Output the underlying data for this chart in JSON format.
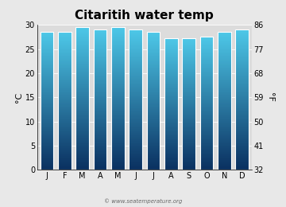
{
  "title": "Citaritih water temp",
  "months": [
    "J",
    "F",
    "M",
    "A",
    "M",
    "J",
    "J",
    "A",
    "S",
    "O",
    "N",
    "D"
  ],
  "values_c": [
    28.5,
    28.5,
    29.5,
    29.0,
    29.5,
    29.0,
    28.5,
    27.2,
    27.2,
    27.5,
    28.5,
    29.0
  ],
  "ylim_c": [
    0,
    30
  ],
  "ylim_f": [
    32,
    86
  ],
  "yticks_c": [
    0,
    5,
    10,
    15,
    20,
    25,
    30
  ],
  "yticks_f": [
    32,
    41,
    50,
    59,
    68,
    77,
    86
  ],
  "ylabel_left": "°C",
  "ylabel_right": "°F",
  "bar_color_top": "#4dc8e8",
  "bar_color_bottom": "#0a3060",
  "background_color": "#e8e8e8",
  "plot_bg_color": "#dcdcdc",
  "watermark": "© www.seatemperature.org",
  "title_fontsize": 11,
  "tick_fontsize": 7,
  "label_fontsize": 8,
  "bar_width": 0.75
}
